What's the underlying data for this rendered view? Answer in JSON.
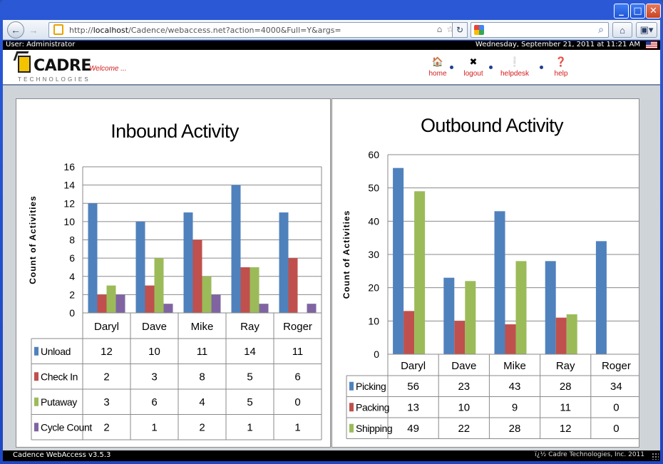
{
  "browser": {
    "url_scheme": "http://",
    "url_host": "localhost",
    "url_path": "/Cadence/webaccess.net?action=4000&Full=Y&args="
  },
  "userbar": {
    "user": "User: Administrator",
    "datetime": "Wednesday, September 21, 2011 at 11:21 AM"
  },
  "header": {
    "logo_text": "CADRE",
    "logo_sub": "TECHNOLOGIES",
    "welcome": "Welcome ...",
    "nav": [
      {
        "label": "home",
        "icon": "home-icon"
      },
      {
        "label": "logout",
        "icon": "logout-icon"
      },
      {
        "label": "helpdesk",
        "icon": "helpdesk-icon"
      },
      {
        "label": "help",
        "icon": "help-icon"
      }
    ]
  },
  "colors": {
    "series1": "#4f81bd",
    "series2": "#c0504d",
    "series3": "#9bbb59",
    "series4": "#8064a2",
    "link_red": "#d31b1b"
  },
  "chart_data": [
    {
      "type": "bar",
      "title": "Inbound Activity",
      "ylabel": "Count of Activities",
      "ylim": [
        0,
        16
      ],
      "yticks": [
        0,
        2,
        4,
        6,
        8,
        10,
        12,
        14,
        16
      ],
      "categories": [
        "Daryl",
        "Dave",
        "Mike",
        "Ray",
        "Roger"
      ],
      "series": [
        {
          "name": "Unload",
          "values": [
            12,
            10,
            11,
            14,
            11
          ]
        },
        {
          "name": "Check In",
          "values": [
            2,
            3,
            8,
            5,
            6
          ]
        },
        {
          "name": "Putaway",
          "values": [
            3,
            6,
            4,
            5,
            0
          ]
        },
        {
          "name": "Cycle Count",
          "values": [
            2,
            1,
            2,
            1,
            1
          ]
        }
      ],
      "grid": true,
      "data_table": true
    },
    {
      "type": "bar",
      "title": "Outbound Activity",
      "ylabel": "Count of Activities",
      "ylim": [
        0,
        60
      ],
      "yticks": [
        0,
        10,
        20,
        30,
        40,
        50,
        60
      ],
      "categories": [
        "Daryl",
        "Dave",
        "Mike",
        "Ray",
        "Roger"
      ],
      "series": [
        {
          "name": "Picking",
          "values": [
            56,
            23,
            43,
            28,
            34
          ]
        },
        {
          "name": "Packing",
          "values": [
            13,
            10,
            9,
            11,
            0
          ]
        },
        {
          "name": "Shipping",
          "values": [
            49,
            22,
            28,
            12,
            0
          ]
        }
      ],
      "grid": true,
      "data_table": true
    }
  ],
  "statusbar": {
    "version": "Cadence WebAccess v3.5.3",
    "copyright": "ï¿½ Cadre Technologies, Inc. 2011"
  }
}
